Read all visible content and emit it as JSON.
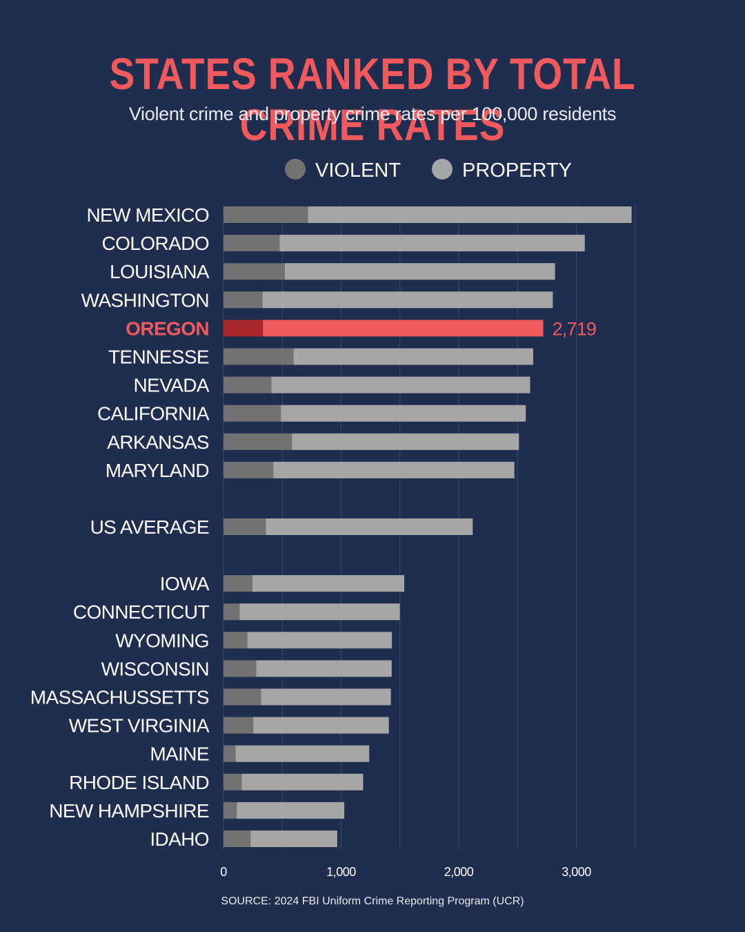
{
  "title": "STATES RANKED BY TOTAL CRIME RATES",
  "subtitle": "Violent crime and property crime rates per 100,000 residents",
  "source": "SOURCE: 2024 FBI Uniform Crime Reporting Program (UCR)",
  "colors": {
    "background": "#1f2d4e",
    "title": "#f15a5d",
    "violent": "#727272",
    "property": "#a6a6a6",
    "highlight_violent": "#a8282c",
    "highlight_property": "#f15a5d",
    "gridline": "#3c4a6c",
    "label": "#ffffff"
  },
  "chart_data": {
    "type": "bar",
    "orientation": "horizontal",
    "stacked": true,
    "title": "STATES RANKED BY TOTAL CRIME RATES",
    "subtitle": "Violent crime and property crime rates per 100,000 residents",
    "legend": [
      {
        "name": "VIOLENT",
        "icon": "violent-legend-dot"
      },
      {
        "name": "PROPERTY",
        "icon": "property-legend-dot"
      }
    ],
    "legend_position": "top",
    "xlim": [
      0,
      3500
    ],
    "x_ticks": [
      0,
      1000,
      2000,
      3000
    ],
    "x_tick_labels": [
      "0",
      "1,000",
      "2,000",
      "3,000"
    ],
    "grid": true,
    "highlight": "OREGON",
    "highlight_label": "2,719",
    "categories": [
      {
        "name": "NEW MEXICO",
        "violent": 717,
        "property": 2753,
        "group": 0
      },
      {
        "name": "COLORADO",
        "violent": 477,
        "property": 2595,
        "group": 0
      },
      {
        "name": "LOUISIANA",
        "violent": 522,
        "property": 2297,
        "group": 0
      },
      {
        "name": "WASHINGTON",
        "violent": 332,
        "property": 2468,
        "group": 0
      },
      {
        "name": "OREGON",
        "violent": 335,
        "property": 2384,
        "group": 0
      },
      {
        "name": "TENNESSE",
        "violent": 596,
        "property": 2037,
        "group": 0
      },
      {
        "name": "NEVADA",
        "violent": 407,
        "property": 2200,
        "group": 0
      },
      {
        "name": "CALIFORNIA",
        "violent": 488,
        "property": 2082,
        "group": 0
      },
      {
        "name": "ARKANSAS",
        "violent": 582,
        "property": 1930,
        "group": 0
      },
      {
        "name": "MARYLAND",
        "violent": 423,
        "property": 2050,
        "group": 0
      },
      {
        "name": "US AVERAGE",
        "violent": 359,
        "property": 1760,
        "group": 1
      },
      {
        "name": "IOWA",
        "violent": 245,
        "property": 1292,
        "group": 2
      },
      {
        "name": "CONNECTICUT",
        "violent": 137,
        "property": 1362,
        "group": 2
      },
      {
        "name": "WYOMING",
        "violent": 203,
        "property": 1229,
        "group": 2
      },
      {
        "name": "WISCONSIN",
        "violent": 278,
        "property": 1152,
        "group": 2
      },
      {
        "name": "MASSACHUSSETTS",
        "violent": 318,
        "property": 1105,
        "group": 2
      },
      {
        "name": "WEST VIRGINIA",
        "violent": 253,
        "property": 1153,
        "group": 2
      },
      {
        "name": "MAINE",
        "violent": 103,
        "property": 1136,
        "group": 2
      },
      {
        "name": "RHODE ISLAND",
        "violent": 155,
        "property": 1032,
        "group": 2
      },
      {
        "name": "NEW HAMPSHIRE",
        "violent": 113,
        "property": 914,
        "group": 2
      },
      {
        "name": "IDAHO",
        "violent": 230,
        "property": 737,
        "group": 2
      }
    ]
  }
}
